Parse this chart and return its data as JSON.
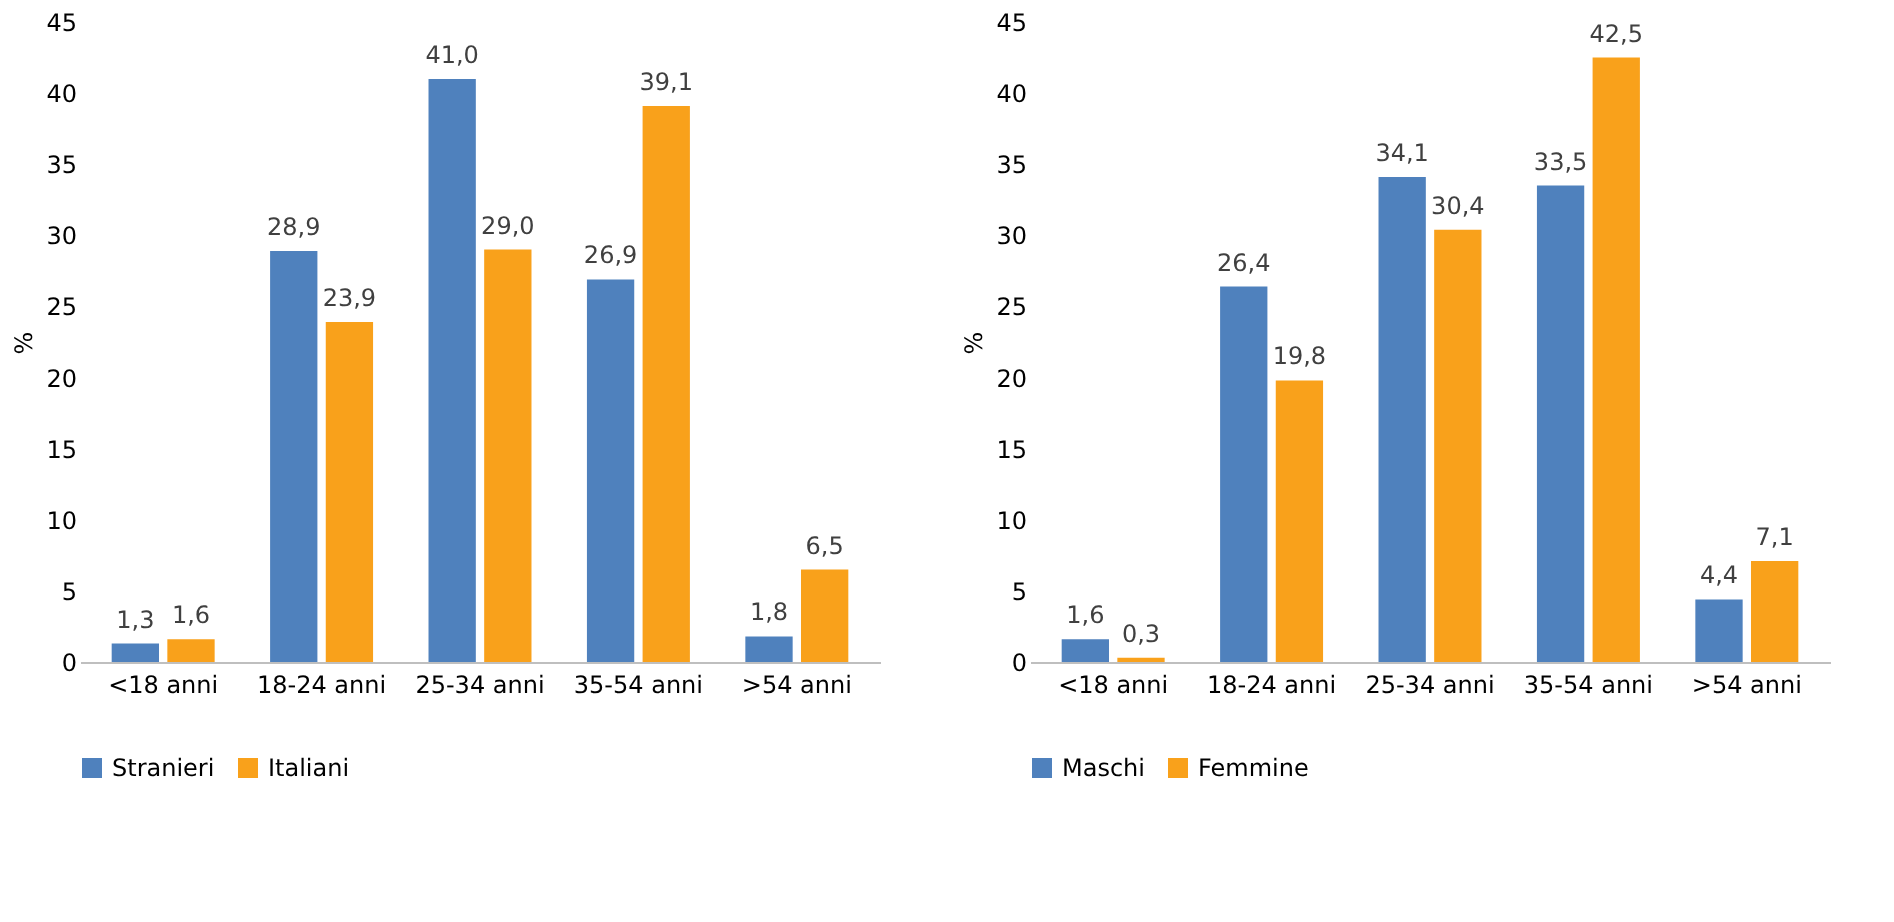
{
  "chart_data": [
    {
      "type": "bar",
      "ylabel": "%",
      "categories": [
        "<18 anni",
        "18-24 anni",
        "25-34 anni",
        "35-54 anni",
        ">54 anni"
      ],
      "ylim": [
        0,
        45
      ],
      "yticks": [
        0,
        5,
        10,
        15,
        20,
        25,
        30,
        35,
        40,
        45
      ],
      "grid": false,
      "legend": "bottom",
      "series": [
        {
          "name": "Stranieri",
          "color": "#4f81bd",
          "values": [
            1.3,
            28.9,
            41.0,
            26.9,
            1.8
          ],
          "value_labels": [
            "1,3",
            "28,9",
            "41,0",
            "26,9",
            "1,8"
          ]
        },
        {
          "name": "Italiani",
          "color": "#f9a11b",
          "values": [
            1.6,
            23.9,
            29.0,
            39.1,
            6.5
          ],
          "value_labels": [
            "1,6",
            "23,9",
            "29,0",
            "39,1",
            "6,5"
          ]
        }
      ]
    },
    {
      "type": "bar",
      "ylabel": "%",
      "categories": [
        "<18 anni",
        "18-24 anni",
        "25-34 anni",
        "35-54 anni",
        ">54 anni"
      ],
      "ylim": [
        0,
        45
      ],
      "yticks": [
        0,
        5,
        10,
        15,
        20,
        25,
        30,
        35,
        40,
        45
      ],
      "grid": false,
      "legend": "bottom",
      "series": [
        {
          "name": "Maschi",
          "color": "#4f81bd",
          "values": [
            1.6,
            26.4,
            34.1,
            33.5,
            4.4
          ],
          "value_labels": [
            "1,6",
            "26,4",
            "34,1",
            "33,5",
            "4,4"
          ]
        },
        {
          "name": "Femmine",
          "color": "#f9a11b",
          "values": [
            0.3,
            19.8,
            30.4,
            42.5,
            7.1
          ],
          "value_labels": [
            "0,3",
            "19,8",
            "30,4",
            "42,5",
            "7,1"
          ]
        }
      ]
    }
  ]
}
